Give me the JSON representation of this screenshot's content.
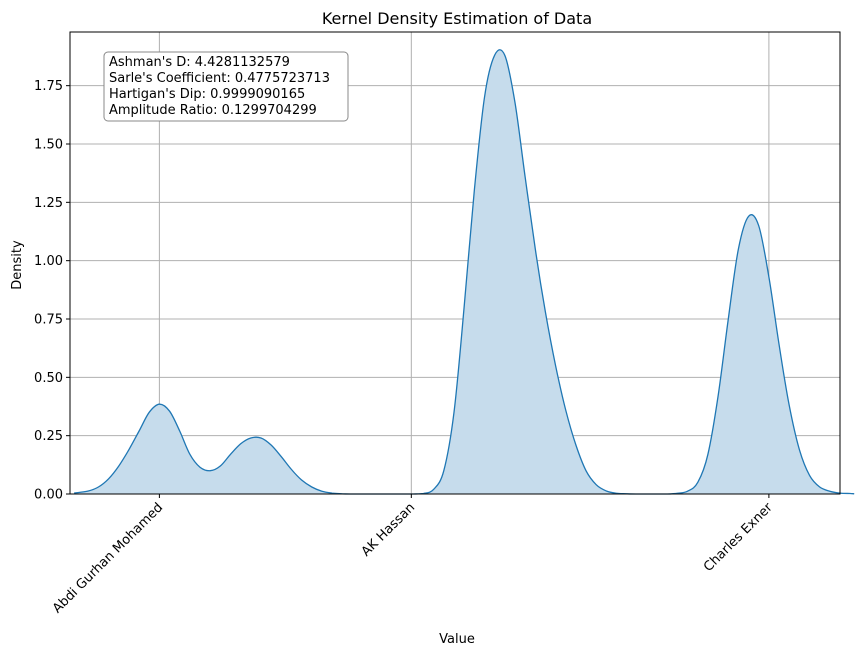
{
  "chart_data": {
    "type": "area",
    "title": "Kernel Density Estimation of Data",
    "xlabel": "Value",
    "ylabel": "Density",
    "ylim": [
      0,
      1.98
    ],
    "xlim": [
      -0.44,
      3.35
    ],
    "grid": true,
    "x_ticks": [
      {
        "value": 0,
        "label": "Abdi Gurhan Mohamed"
      },
      {
        "value": 1.24,
        "label": "AK Hassan"
      },
      {
        "value": 3.0,
        "label": "Charles Exner"
      }
    ],
    "y_ticks": [
      0.0,
      0.25,
      0.5,
      0.75,
      1.0,
      1.25,
      1.5,
      1.75
    ],
    "y_tick_labels": [
      "0.00",
      "0.25",
      "0.50",
      "0.75",
      "1.00",
      "1.25",
      "1.50",
      "1.75"
    ],
    "line_color": "#1f77b4",
    "fill_color": "#c6dcec",
    "x": [
      -0.42,
      -0.35,
      -0.3,
      -0.25,
      -0.2,
      -0.15,
      -0.1,
      -0.05,
      0.0,
      0.05,
      0.1,
      0.15,
      0.2,
      0.25,
      0.3,
      0.35,
      0.4,
      0.45,
      0.5,
      0.55,
      0.6,
      0.65,
      0.7,
      0.75,
      0.8,
      0.85,
      0.9,
      0.95,
      1.0,
      1.05,
      1.1,
      1.15,
      1.2,
      1.25,
      1.3,
      1.35,
      1.4,
      1.45,
      1.5,
      1.55,
      1.6,
      1.65,
      1.7,
      1.75,
      1.8,
      1.85,
      1.9,
      1.95,
      2.0,
      2.05,
      2.1,
      2.15,
      2.2,
      2.25,
      2.3,
      2.35,
      2.4,
      2.45,
      2.5,
      2.55,
      2.6,
      2.65,
      2.7,
      2.75,
      2.8,
      2.85,
      2.9,
      2.95,
      3.0,
      3.05,
      3.1,
      3.15,
      3.2,
      3.25,
      3.3,
      3.35,
      3.4,
      3.42
    ],
    "y": [
      0.004,
      0.013,
      0.03,
      0.065,
      0.12,
      0.19,
      0.27,
      0.35,
      0.385,
      0.355,
      0.27,
      0.17,
      0.115,
      0.1,
      0.12,
      0.17,
      0.215,
      0.24,
      0.24,
      0.21,
      0.16,
      0.105,
      0.06,
      0.03,
      0.012,
      0.004,
      0.001,
      0.0,
      0.0,
      0.0,
      0.0,
      0.0,
      0.0,
      0.0,
      0.002,
      0.02,
      0.1,
      0.35,
      0.8,
      1.3,
      1.7,
      1.88,
      1.88,
      1.68,
      1.36,
      1.05,
      0.78,
      0.55,
      0.36,
      0.21,
      0.1,
      0.04,
      0.013,
      0.003,
      0.001,
      0.0,
      0.0,
      0.0,
      0.0,
      0.003,
      0.012,
      0.05,
      0.17,
      0.42,
      0.75,
      1.05,
      1.19,
      1.15,
      0.93,
      0.64,
      0.38,
      0.19,
      0.08,
      0.03,
      0.012,
      0.004,
      0.002,
      0.001
    ],
    "annotations": [
      "Ashman's D: 4.4281132579",
      "Sarle's Coefficient: 0.4775723713",
      "Hartigan's Dip: 0.9999090165",
      "Amplitude Ratio: 0.1299704299"
    ]
  }
}
